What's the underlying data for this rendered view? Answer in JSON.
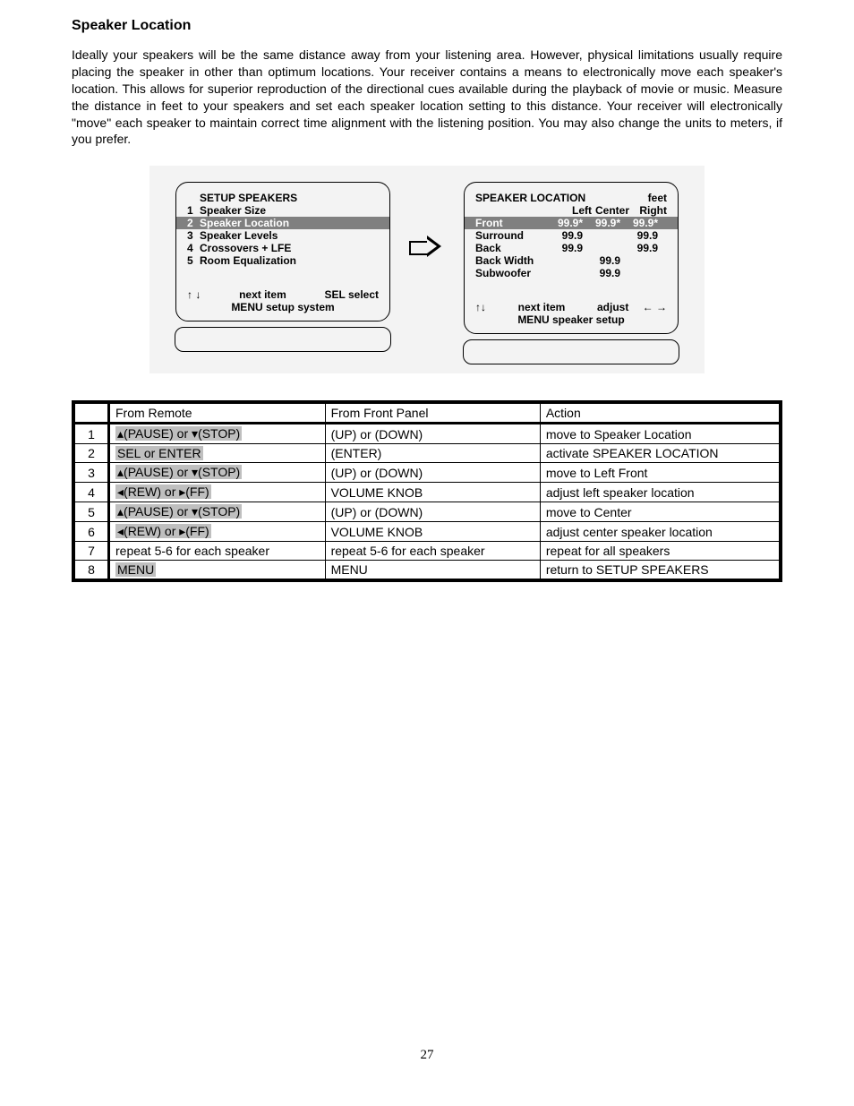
{
  "heading": "Speaker Location",
  "paragraph": "Ideally your speakers will be the same distance away from your listening area. However, physical limitations usually require placing the speaker in other than optimum locations. Your receiver contains a means to electronically move each speaker's location. This allows for superior reproduction of the directional cues available during the playback of movie or music. Measure the distance in feet to your speakers and set each speaker location setting to this distance. Your receiver will electronically \"move\" each speaker to maintain correct time alignment with the listening position. You may also change the units to meters, if you prefer.",
  "menu_screen": {
    "title": "SETUP SPEAKERS",
    "items": [
      {
        "num": "1",
        "label": "Speaker Size",
        "selected": false
      },
      {
        "num": "2",
        "label": "Speaker Location",
        "selected": true
      },
      {
        "num": "3",
        "label": "Speaker Levels",
        "selected": false
      },
      {
        "num": "4",
        "label": "Crossovers + LFE",
        "selected": false
      },
      {
        "num": "5",
        "label": "Room Equalization",
        "selected": false
      }
    ],
    "footer_next": "next item",
    "footer_sel": "SEL  select",
    "footer_menu": "MENU setup system"
  },
  "loc_screen": {
    "title": "SPEAKER LOCATION",
    "unit": "feet",
    "col_left": "Left",
    "col_center": "Center",
    "col_right": "Right",
    "rows": [
      {
        "label": "Front",
        "left": "99.9*",
        "center": "99.9*",
        "right": "99.9*",
        "selected": true
      },
      {
        "label": "Surround",
        "left": "99.9",
        "center": "",
        "right": "99.9",
        "selected": false
      },
      {
        "label": "Back",
        "left": "99.9",
        "center": "",
        "right": "99.9",
        "selected": false
      },
      {
        "label": "Back Width",
        "left": "",
        "center": "99.9",
        "right": "",
        "selected": false
      },
      {
        "label": "Subwoofer",
        "left": "",
        "center": "99.9",
        "right": "",
        "selected": false
      }
    ],
    "footer_next": "next item",
    "footer_adjust": "adjust",
    "footer_menu": "MENU speaker setup"
  },
  "table": {
    "headers": {
      "remote": "From Remote",
      "panel": "From Front Panel",
      "action": "Action"
    },
    "rows": [
      {
        "n": "1",
        "remote_hl": true,
        "remote": "▴(PAUSE) or ▾(STOP)",
        "panel": "(UP) or (DOWN)",
        "action": "move to Speaker Location"
      },
      {
        "n": "2",
        "remote_hl": true,
        "remote": "SEL or ENTER",
        "panel": "(ENTER)",
        "action": "activate SPEAKER LOCATION"
      },
      {
        "n": "3",
        "remote_hl": true,
        "remote": "▴(PAUSE) or ▾(STOP)",
        "panel": "(UP) or (DOWN)",
        "action": "move to Left Front"
      },
      {
        "n": "4",
        "remote_hl": true,
        "remote": "◂(REW) or ▸(FF)",
        "panel": "VOLUME KNOB",
        "action": "adjust left speaker location"
      },
      {
        "n": "5",
        "remote_hl": true,
        "remote": "▴(PAUSE) or ▾(STOP)",
        "panel": "(UP) or (DOWN)",
        "action": "move to Center"
      },
      {
        "n": "6",
        "remote_hl": true,
        "remote": "◂(REW) or ▸(FF)",
        "panel": "VOLUME KNOB",
        "action": "adjust center speaker location"
      },
      {
        "n": "7",
        "remote_hl": false,
        "remote": "repeat 5-6 for each speaker",
        "panel": "repeat 5-6 for each speaker",
        "action": "repeat for all speakers"
      },
      {
        "n": "8",
        "remote_hl": true,
        "remote": "MENU",
        "panel": "MENU",
        "action": "return to SETUP SPEAKERS"
      }
    ]
  },
  "page_number": "27"
}
